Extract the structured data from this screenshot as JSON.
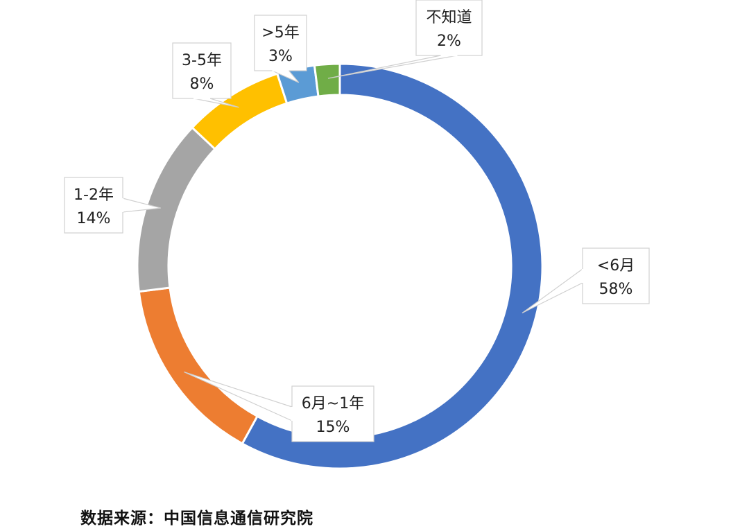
{
  "chart_data": {
    "type": "pie",
    "variant": "donut",
    "slices": [
      {
        "label": "<6月",
        "pct_text": "58%",
        "value": 58,
        "color": "#4472C4"
      },
      {
        "label": "6月~1年",
        "pct_text": "15%",
        "value": 15,
        "color": "#ED7D31"
      },
      {
        "label": "1-2年",
        "pct_text": "14%",
        "value": 14,
        "color": "#A5A5A5"
      },
      {
        "label": "3-5年",
        "pct_text": "8%",
        "value": 8,
        "color": "#FFC000"
      },
      {
        "label": ">5年",
        "pct_text": "3%",
        "value": 3,
        "color": "#5B9BD5"
      },
      {
        "label": "不知道",
        "pct_text": "2%",
        "value": 2,
        "color": "#70AD47"
      }
    ]
  },
  "source": "数据来源：中国信息通信研究院"
}
